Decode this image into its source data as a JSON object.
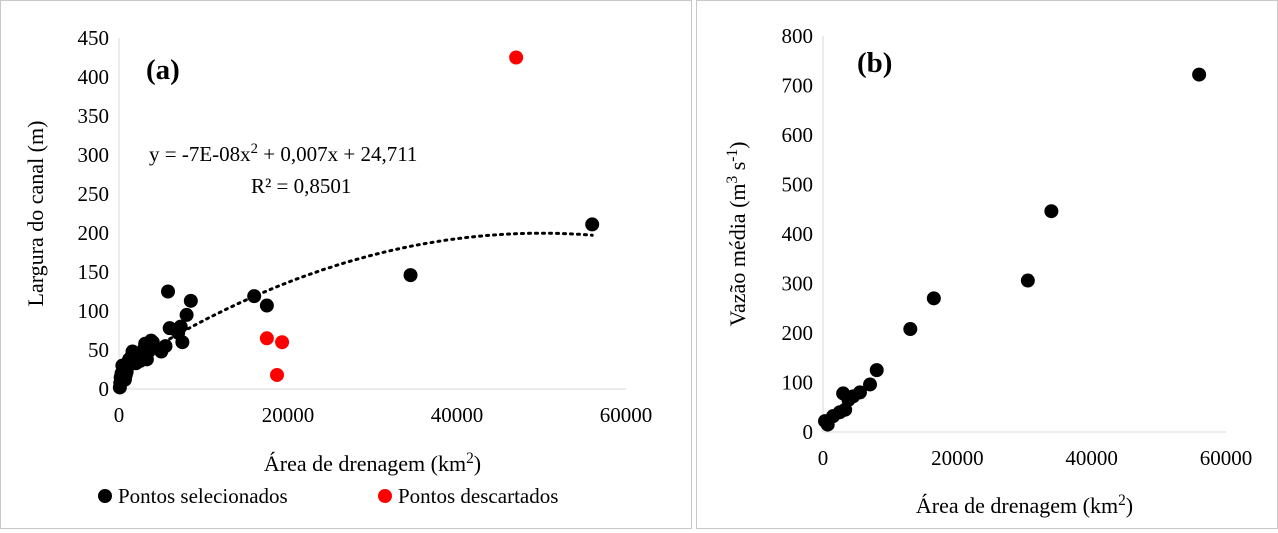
{
  "chart_data": [
    {
      "id": "a",
      "type": "scatter",
      "panel_label": "(a)",
      "xlabel": "Área de drenagem (km",
      "xlabel_sup": "2",
      "xlabel_end": ")",
      "ylabel": "Largura do canal (m)",
      "xlim": [
        0,
        60000
      ],
      "ylim": [
        0,
        450
      ],
      "xticks": [
        "0",
        "20000",
        "40000",
        "60000"
      ],
      "xtick_values": [
        0,
        20000,
        40000,
        60000
      ],
      "yticks": [
        "0",
        "50",
        "100",
        "150",
        "200",
        "250",
        "300",
        "350",
        "400",
        "450"
      ],
      "ytick_values": [
        0,
        50,
        100,
        150,
        200,
        250,
        300,
        350,
        400,
        450
      ],
      "grid": false,
      "legend_position": "bottom",
      "trendline": {
        "type": "polynomial",
        "equation_parts": [
          "y = -7E-08x",
          "2",
          " + 0,007x + 24,711"
        ],
        "r2": "R² = 0,8501",
        "coefficients": [
          -7e-08,
          0.007,
          24.711
        ],
        "x_range": [
          6000,
          56000
        ],
        "style": "dotted",
        "color": "#000000"
      },
      "series": [
        {
          "name": "Pontos selecionados",
          "color": "#000000",
          "points": [
            [
              100,
              2
            ],
            [
              150,
              8
            ],
            [
              200,
              15
            ],
            [
              300,
              20
            ],
            [
              400,
              30
            ],
            [
              600,
              25
            ],
            [
              700,
              12
            ],
            [
              800,
              18
            ],
            [
              900,
              22
            ],
            [
              1000,
              28
            ],
            [
              1100,
              35
            ],
            [
              1200,
              38
            ],
            [
              1500,
              42
            ],
            [
              1600,
              48
            ],
            [
              2000,
              33
            ],
            [
              2200,
              40
            ],
            [
              2500,
              36
            ],
            [
              2800,
              45
            ],
            [
              3000,
              52
            ],
            [
              3100,
              58
            ],
            [
              3300,
              38
            ],
            [
              3500,
              48
            ],
            [
              3800,
              62
            ],
            [
              4000,
              60
            ],
            [
              5000,
              48
            ],
            [
              5500,
              55
            ],
            [
              5800,
              125
            ],
            [
              6000,
              78
            ],
            [
              7000,
              72
            ],
            [
              7300,
              80
            ],
            [
              7500,
              60
            ],
            [
              8000,
              95
            ],
            [
              8500,
              113
            ],
            [
              16000,
              119
            ],
            [
              17500,
              107
            ],
            [
              34500,
              146
            ],
            [
              56000,
              211
            ]
          ]
        },
        {
          "name": "Pontos descartados",
          "color": "#ff0000",
          "points": [
            [
              17500,
              65
            ],
            [
              18700,
              18
            ],
            [
              19300,
              60
            ],
            [
              47000,
              425
            ]
          ]
        }
      ]
    },
    {
      "id": "b",
      "type": "scatter",
      "panel_label": "(b)",
      "xlabel": "Área de drenagem (km",
      "xlabel_sup": "2",
      "xlabel_end": ")",
      "ylabel_parts": [
        "Vazão média (m",
        "3",
        " s",
        "-1",
        ")"
      ],
      "xlim": [
        0,
        60000
      ],
      "ylim": [
        0,
        800
      ],
      "xticks": [
        "0",
        "20000",
        "40000",
        "60000"
      ],
      "xtick_values": [
        0,
        20000,
        40000,
        60000
      ],
      "yticks": [
        "0",
        "100",
        "200",
        "300",
        "400",
        "500",
        "600",
        "700",
        "800"
      ],
      "ytick_values": [
        0,
        100,
        200,
        300,
        400,
        500,
        600,
        700,
        800
      ],
      "grid": false,
      "series": [
        {
          "color": "#000000",
          "points": [
            [
              300,
              22
            ],
            [
              700,
              15
            ],
            [
              1500,
              32
            ],
            [
              2500,
              40
            ],
            [
              3000,
              78
            ],
            [
              3300,
              45
            ],
            [
              3800,
              65
            ],
            [
              4500,
              72
            ],
            [
              5500,
              80
            ],
            [
              7000,
              96
            ],
            [
              8000,
              125
            ],
            [
              13000,
              208
            ],
            [
              16500,
              270
            ],
            [
              30500,
              306
            ],
            [
              34000,
              446
            ],
            [
              56000,
              722
            ]
          ]
        }
      ]
    }
  ]
}
